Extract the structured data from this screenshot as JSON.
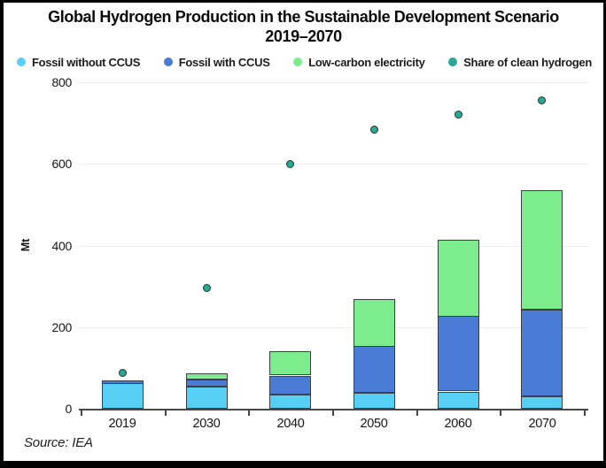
{
  "title": {
    "line1": "Global Hydrogen Production in the Sustainable Development Scenario",
    "line2": "2019–2070"
  },
  "legend": {
    "items": [
      {
        "label": "Fossil without CCUS",
        "color": "#58CFF5"
      },
      {
        "label": "Fossil with CCUS",
        "color": "#4A7CD6"
      },
      {
        "label": "Low-carbon electricity",
        "color": "#7CEC8C"
      },
      {
        "label": "Share of clean hydrogen",
        "color": "#2AA795"
      }
    ]
  },
  "chart_data": {
    "type": "bar",
    "stacked": true,
    "categories": [
      "2019",
      "2030",
      "2040",
      "2050",
      "2060",
      "2070"
    ],
    "series": [
      {
        "name": "Fossil without CCUS",
        "color": "#58CFF5",
        "values": [
          62,
          54,
          35,
          38,
          42,
          30
        ]
      },
      {
        "name": "Fossil with CCUS",
        "color": "#4A7CD6",
        "values": [
          8,
          17,
          46,
          115,
          185,
          213
        ]
      },
      {
        "name": "Low-carbon electricity",
        "color": "#7CEC8C",
        "values": [
          0,
          16,
          59,
          116,
          188,
          292
        ]
      }
    ],
    "scatter_series": {
      "name": "Share of clean hydrogen",
      "color": "#2AA795",
      "values": [
        87,
        295,
        600,
        685,
        720,
        755
      ]
    },
    "totals": [
      70,
      87,
      140,
      269,
      415,
      535
    ],
    "title": "Global Hydrogen Production in the Sustainable Development Scenario 2019–2070",
    "xlabel": "",
    "ylabel": "Mt",
    "ylim": [
      0,
      800
    ],
    "yticks": [
      0,
      200,
      400,
      600,
      800
    ],
    "grid": true,
    "legend_position": "top"
  },
  "source": {
    "label": "Source: IEA"
  }
}
